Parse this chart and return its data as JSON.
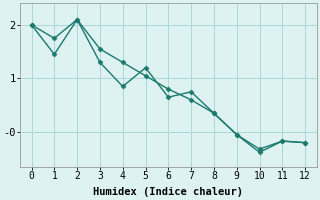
{
  "line1_x": [
    0,
    1,
    2,
    3,
    4,
    5,
    6,
    7,
    8,
    9,
    10,
    11,
    12
  ],
  "line1_y": [
    2.0,
    1.45,
    2.1,
    1.3,
    0.85,
    1.2,
    0.65,
    0.75,
    0.35,
    -0.05,
    -0.32,
    -0.17,
    -0.2
  ],
  "line2_x": [
    0,
    1,
    2,
    3,
    4,
    5,
    6,
    7,
    8,
    9,
    10,
    11,
    12
  ],
  "line2_y": [
    2.0,
    1.75,
    2.1,
    1.55,
    1.3,
    1.05,
    0.8,
    0.6,
    0.35,
    -0.05,
    -0.38,
    -0.17,
    -0.2
  ],
  "line_color": "#1a7a6e",
  "bg_color": "#dff2f2",
  "grid_color": "#aad8d8",
  "xlabel": "Humidex (Indice chaleur)",
  "xlim": [
    -0.5,
    12.5
  ],
  "ylim": [
    -0.65,
    2.4
  ],
  "xticks": [
    0,
    1,
    2,
    3,
    4,
    5,
    6,
    7,
    8,
    9,
    10,
    11,
    12
  ],
  "yticks": [
    0,
    1,
    2
  ],
  "ytick_labels": [
    "-0",
    "1",
    "2"
  ],
  "marker": "D",
  "markersize": 2.5,
  "linewidth": 1.0
}
